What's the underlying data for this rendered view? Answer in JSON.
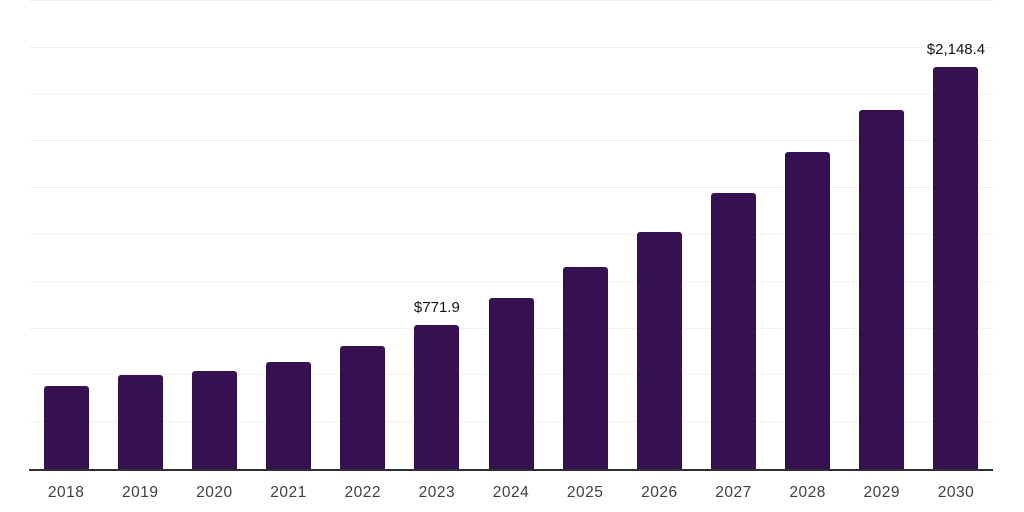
{
  "page": {
    "background": "#ffffff"
  },
  "chart_data": {
    "type": "bar",
    "title": "",
    "xlabel": "",
    "ylabel": "",
    "categories": [
      "2018",
      "2019",
      "2020",
      "2021",
      "2022",
      "2023",
      "2024",
      "2025",
      "2026",
      "2027",
      "2028",
      "2029",
      "2030"
    ],
    "values": [
      446.0,
      504.8,
      526.1,
      574.2,
      659.7,
      771.9,
      912.3,
      1081.7,
      1267.0,
      1476.9,
      1692.2,
      1920.3,
      2148.4
    ],
    "point_labels": {
      "2023": "$771.9",
      "2030": "$2,148.4"
    },
    "ylim": [
      0,
      2500
    ],
    "grid_interval": 250,
    "grid": "horizontal-only",
    "legend": "none",
    "y_axis_ticks_visible": false,
    "colors": {
      "bar": "#361152",
      "grid_line": "#f2f2f3",
      "axis_line": "#2e2e2e",
      "tick_label": "#3e3e3e",
      "data_label": "#141414",
      "background": "#ffffff"
    }
  }
}
